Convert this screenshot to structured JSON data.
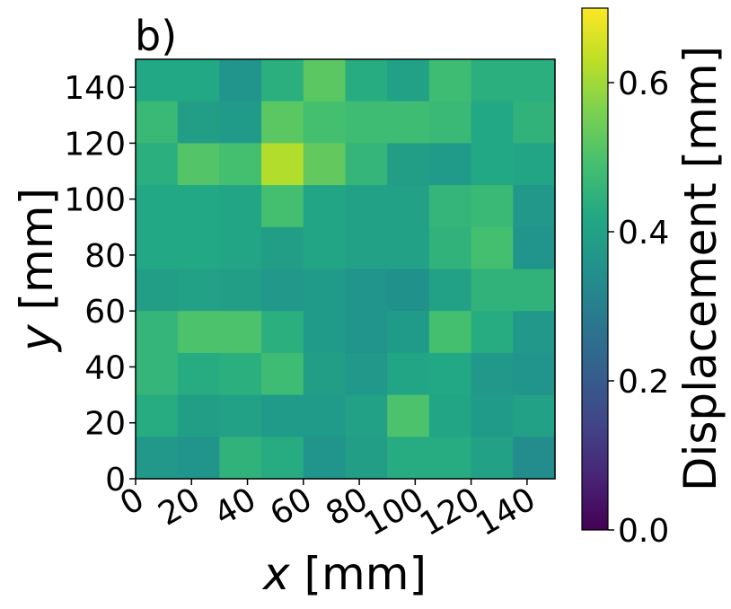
{
  "panel_label": "b)",
  "chart_data": {
    "type": "heatmap",
    "xlabel_var": "x",
    "xlabel_unit": " [mm]",
    "ylabel_var": "y",
    "ylabel_unit": " [mm]",
    "colorbar_label": "Displacement [mm]",
    "colormap": "viridis",
    "x_ticks": [
      "0",
      "20",
      "40",
      "60",
      "80",
      "100",
      "120",
      "140"
    ],
    "y_ticks": [
      "0",
      "20",
      "40",
      "60",
      "80",
      "100",
      "120",
      "140"
    ],
    "colorbar_ticks": [
      "0.0",
      "0.2",
      "0.4",
      "0.6"
    ],
    "xlim": [
      0,
      150
    ],
    "ylim": [
      0,
      150
    ],
    "clim": [
      0,
      0.7
    ],
    "cell_size": 15,
    "grid": false,
    "values_top_to_bottom": [
      [
        0.42,
        0.42,
        0.36,
        0.44,
        0.52,
        0.43,
        0.4,
        0.48,
        0.44,
        0.44
      ],
      [
        0.47,
        0.39,
        0.38,
        0.52,
        0.49,
        0.48,
        0.48,
        0.47,
        0.42,
        0.45
      ],
      [
        0.44,
        0.51,
        0.49,
        0.62,
        0.53,
        0.46,
        0.39,
        0.38,
        0.42,
        0.41
      ],
      [
        0.42,
        0.42,
        0.41,
        0.49,
        0.41,
        0.4,
        0.4,
        0.46,
        0.47,
        0.37
      ],
      [
        0.42,
        0.42,
        0.41,
        0.39,
        0.41,
        0.4,
        0.4,
        0.45,
        0.49,
        0.36
      ],
      [
        0.39,
        0.4,
        0.39,
        0.37,
        0.38,
        0.36,
        0.35,
        0.4,
        0.45,
        0.45
      ],
      [
        0.46,
        0.5,
        0.5,
        0.44,
        0.38,
        0.36,
        0.38,
        0.49,
        0.43,
        0.37
      ],
      [
        0.46,
        0.43,
        0.44,
        0.48,
        0.39,
        0.37,
        0.41,
        0.42,
        0.37,
        0.36
      ],
      [
        0.43,
        0.39,
        0.4,
        0.38,
        0.38,
        0.4,
        0.5,
        0.41,
        0.38,
        0.4
      ],
      [
        0.37,
        0.36,
        0.45,
        0.43,
        0.36,
        0.39,
        0.43,
        0.43,
        0.4,
        0.34
      ]
    ]
  }
}
